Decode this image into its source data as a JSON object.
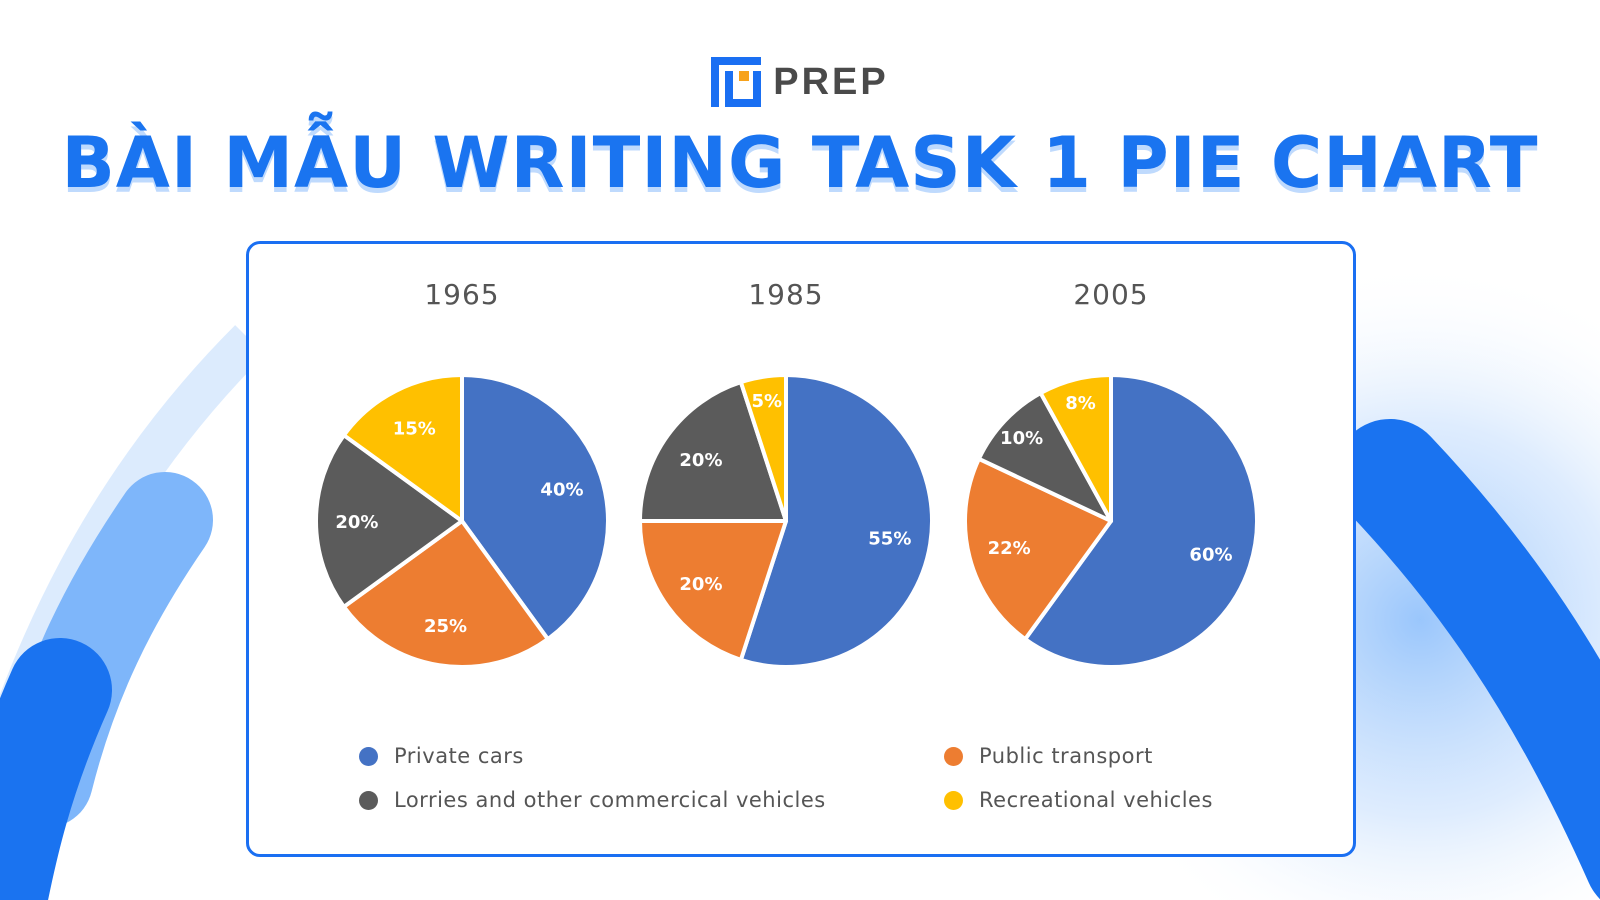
{
  "brand": {
    "name": "PREP"
  },
  "headline": "BÀI MẪU WRITING TASK 1 PIE CHART",
  "colors": {
    "accent": "#1a6ff2",
    "private_cars": "#4472c4",
    "public_transport": "#ed7d31",
    "lorries": "#5b5b5b",
    "recreational": "#ffc000"
  },
  "chart_data": {
    "type": "pie",
    "legend_position": "bottom",
    "legend": [
      {
        "name": "Private cars",
        "color": "#4472c4"
      },
      {
        "name": "Public transport",
        "color": "#ed7d31"
      },
      {
        "name": "Lorries and other commercical vehicles",
        "color": "#5b5b5b"
      },
      {
        "name": "Recreational vehicles",
        "color": "#ffc000"
      }
    ],
    "pies": [
      {
        "title": "1965",
        "slices": [
          {
            "name": "Private cars",
            "value": 40,
            "label": "40%"
          },
          {
            "name": "Public transport",
            "value": 25,
            "label": "25%"
          },
          {
            "name": "Lorries and other commercical vehicles",
            "value": 20,
            "label": "20%"
          },
          {
            "name": "Recreational vehicles",
            "value": 15,
            "label": "15%"
          }
        ]
      },
      {
        "title": "1985",
        "slices": [
          {
            "name": "Private cars",
            "value": 55,
            "label": "55%"
          },
          {
            "name": "Public transport",
            "value": 20,
            "label": "20%"
          },
          {
            "name": "Lorries and other commercical vehicles",
            "value": 20,
            "label": "20%"
          },
          {
            "name": "Recreational vehicles",
            "value": 5,
            "label": "5%"
          }
        ]
      },
      {
        "title": "2005",
        "slices": [
          {
            "name": "Private cars",
            "value": 60,
            "label": "60%"
          },
          {
            "name": "Public transport",
            "value": 22,
            "label": "22%"
          },
          {
            "name": "Lorries and other commercical vehicles",
            "value": 10,
            "label": "10%"
          },
          {
            "name": "Recreational vehicles",
            "value": 8,
            "label": "8%"
          }
        ]
      }
    ]
  }
}
